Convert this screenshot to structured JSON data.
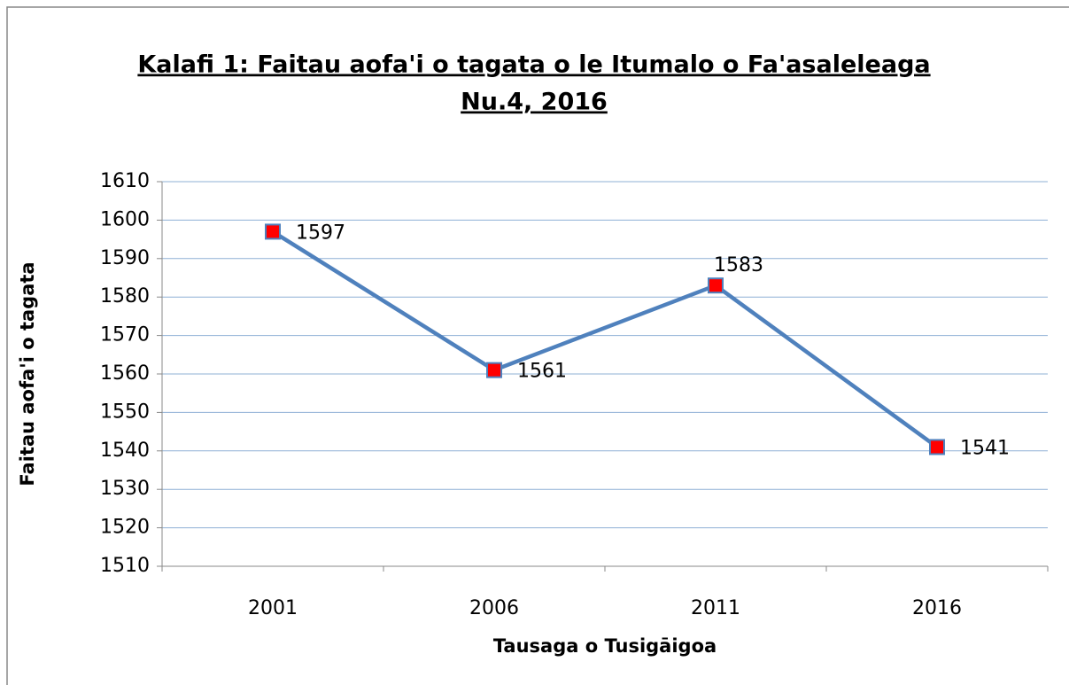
{
  "chart_data": {
    "type": "line",
    "title": [
      "Kalafi 1: Faitau aofa'i o tagata o le Itumalo o Fa'asaleleaga",
      "Nu.4, 2016"
    ],
    "x_label": "Tausaga o Tusigāigoa",
    "y_label": "Faitau aofa'i o tagata",
    "categories": [
      "2001",
      "2006",
      "2011",
      "2016"
    ],
    "series": [
      {
        "name": "Faitau aofa'i o tagata",
        "color": "#4f81bd",
        "marker_color": "#ff0000",
        "values": [
          1597,
          1561,
          1583,
          1541
        ]
      }
    ],
    "ylim": [
      1510,
      1610
    ],
    "yticks": [
      1510,
      1520,
      1530,
      1540,
      1550,
      1560,
      1570,
      1580,
      1590,
      1600,
      1610
    ],
    "grid": true,
    "legend": false
  }
}
